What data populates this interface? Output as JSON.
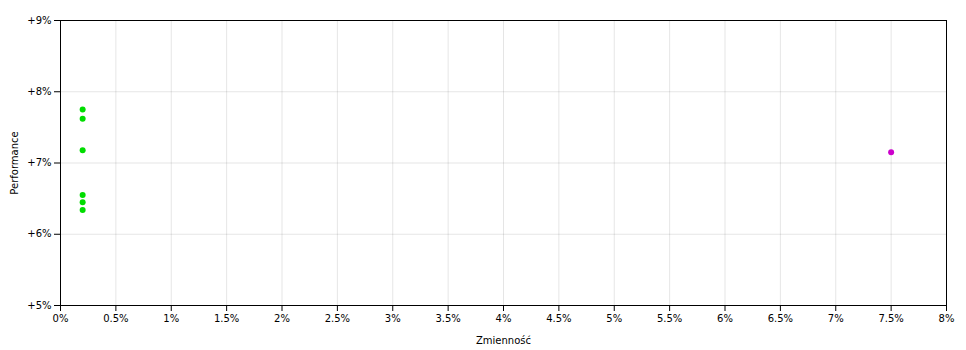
{
  "chart_data": {
    "type": "scatter",
    "xlabel": "Zmienność",
    "ylabel": "Performance",
    "xlim": [
      0,
      0.08
    ],
    "ylim": [
      0.05,
      0.09
    ],
    "xticks": [
      {
        "value": 0,
        "label": "0%"
      },
      {
        "value": 0.005,
        "label": "0.5%"
      },
      {
        "value": 0.01,
        "label": "1%"
      },
      {
        "value": 0.015,
        "label": "1.5%"
      },
      {
        "value": 0.02,
        "label": "2%"
      },
      {
        "value": 0.025,
        "label": "2.5%"
      },
      {
        "value": 0.03,
        "label": "3%"
      },
      {
        "value": 0.035,
        "label": "3.5%"
      },
      {
        "value": 0.04,
        "label": "4%"
      },
      {
        "value": 0.045,
        "label": "4.5%"
      },
      {
        "value": 0.05,
        "label": "5%"
      },
      {
        "value": 0.055,
        "label": "5.5%"
      },
      {
        "value": 0.06,
        "label": "6%"
      },
      {
        "value": 0.065,
        "label": "6.5%"
      },
      {
        "value": 0.07,
        "label": "7%"
      },
      {
        "value": 0.075,
        "label": "7.5%"
      },
      {
        "value": 0.08,
        "label": "8%"
      }
    ],
    "yticks": [
      {
        "value": 0.05,
        "label": "+5%"
      },
      {
        "value": 0.06,
        "label": "+6%"
      },
      {
        "value": 0.07,
        "label": "+7%"
      },
      {
        "value": 0.08,
        "label": "+8%"
      },
      {
        "value": 0.09,
        "label": "+9%"
      }
    ],
    "grid": true,
    "series": [
      {
        "color": "#00dd00",
        "x": [
          0.002,
          0.002,
          0.002,
          0.002,
          0.002,
          0.002
        ],
        "y": [
          0.0775,
          0.0762,
          0.0718,
          0.0655,
          0.0645,
          0.0634
        ]
      },
      {
        "color": "#cc00cc",
        "x": [
          0.075
        ],
        "y": [
          0.0715
        ]
      }
    ]
  }
}
